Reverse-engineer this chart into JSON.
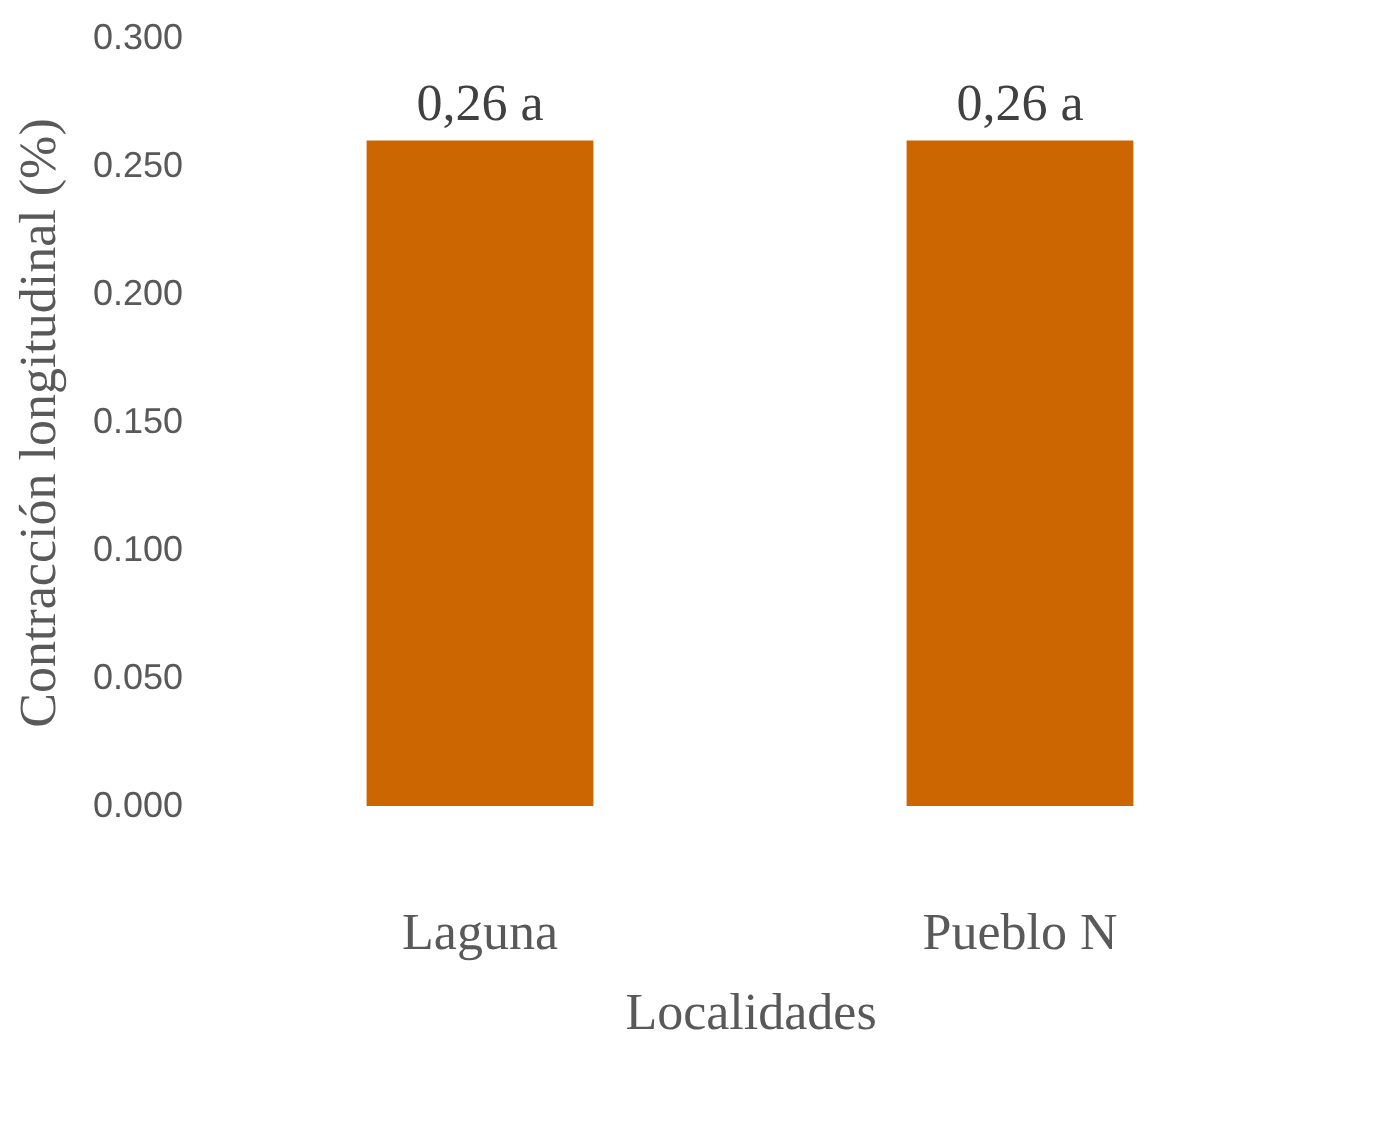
{
  "chart_data": {
    "type": "bar",
    "categories": [
      "Laguna",
      "Pueblo N"
    ],
    "values": [
      0.26,
      0.26
    ],
    "value_labels": [
      "0,26 a",
      "0,26 a"
    ],
    "color": "#cc6600",
    "xlabel": "Localidades",
    "ylabel": "Contracción longitudinal (%)",
    "ylim": [
      0,
      0.3
    ],
    "yticks": [
      {
        "value": 0,
        "label": "0.000"
      },
      {
        "value": 0.05,
        "label": "0.050"
      },
      {
        "value": 0.1,
        "label": "0.100"
      },
      {
        "value": 0.15,
        "label": "0.150"
      },
      {
        "value": 0.2,
        "label": "0.200"
      },
      {
        "value": 0.25,
        "label": "0.250"
      },
      {
        "value": 0.3,
        "label": "0.300"
      }
    ],
    "grid": false
  }
}
